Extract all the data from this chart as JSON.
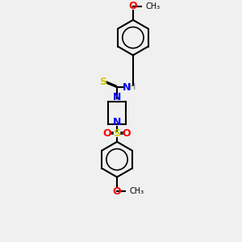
{
  "bg_color": "#f0f0f0",
  "atom_colors": {
    "C": "#000000",
    "N": "#0000ff",
    "O": "#ff0000",
    "S": "#cccc00",
    "H": "#808080"
  },
  "bond_color": "#000000",
  "figsize": [
    3.0,
    3.0
  ],
  "dpi": 100
}
